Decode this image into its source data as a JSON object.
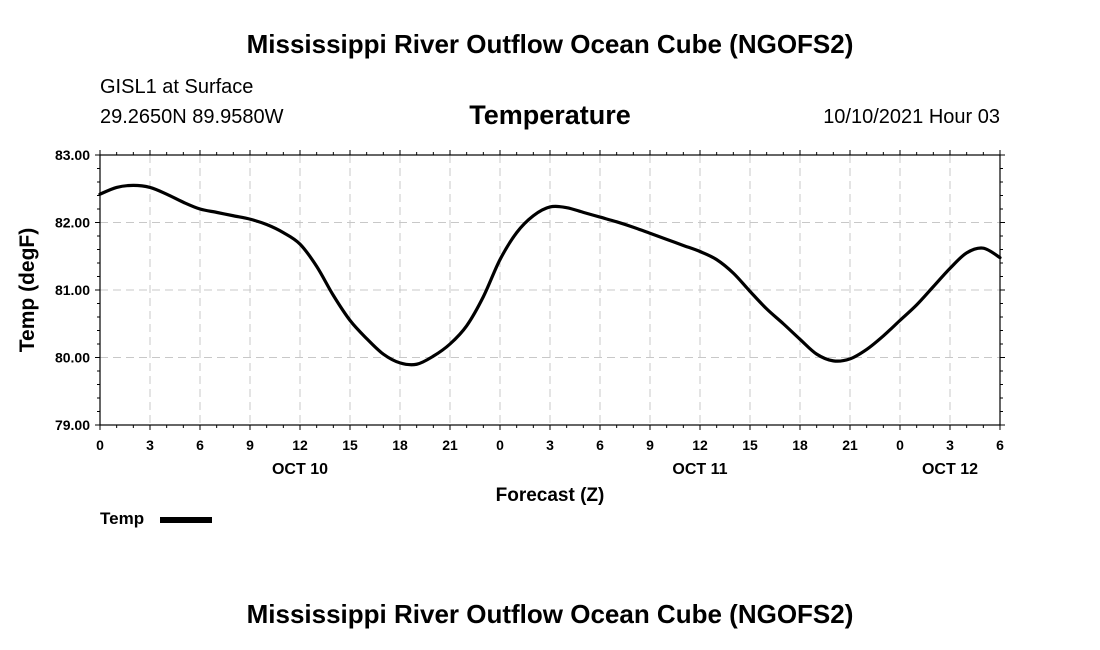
{
  "header": {
    "main_title": "Mississippi River Outflow Ocean Cube (NGOFS2)",
    "station": "GISL1 at Surface",
    "coords": "29.2650N  89.9580W",
    "variable": "Temperature",
    "datetime": "10/10/2021 Hour 03"
  },
  "footer": {
    "main_title": "Mississippi River Outflow Ocean Cube (NGOFS2)"
  },
  "legend": {
    "label": "Temp"
  },
  "chart_data": {
    "type": "line",
    "title": "Temperature",
    "xlabel": "Forecast (Z)",
    "ylabel": "Temp (degF)",
    "xlim": [
      0,
      54
    ],
    "ylim": [
      79,
      83
    ],
    "yticks": [
      "79.00",
      "80.00",
      "81.00",
      "82.00",
      "83.00"
    ],
    "xticks": [
      {
        "hours": 0,
        "label": "0"
      },
      {
        "hours": 3,
        "label": "3"
      },
      {
        "hours": 6,
        "label": "6"
      },
      {
        "hours": 9,
        "label": "9"
      },
      {
        "hours": 12,
        "label": "12"
      },
      {
        "hours": 15,
        "label": "15"
      },
      {
        "hours": 18,
        "label": "18"
      },
      {
        "hours": 21,
        "label": "21"
      },
      {
        "hours": 24,
        "label": "0"
      },
      {
        "hours": 27,
        "label": "3"
      },
      {
        "hours": 30,
        "label": "6"
      },
      {
        "hours": 33,
        "label": "9"
      },
      {
        "hours": 36,
        "label": "12"
      },
      {
        "hours": 39,
        "label": "15"
      },
      {
        "hours": 42,
        "label": "18"
      },
      {
        "hours": 45,
        "label": "21"
      },
      {
        "hours": 48,
        "label": "0"
      },
      {
        "hours": 51,
        "label": "3"
      },
      {
        "hours": 54,
        "label": "6"
      }
    ],
    "day_labels": [
      {
        "hours": 12,
        "label": "OCT 10"
      },
      {
        "hours": 36,
        "label": "OCT 11"
      },
      {
        "hours": 51,
        "label": "OCT 12"
      }
    ],
    "grid": true,
    "series": [
      {
        "name": "Temp",
        "color": "#000000",
        "x": [
          0,
          1,
          2,
          3,
          4,
          5,
          6,
          7,
          8,
          9,
          10,
          11,
          12,
          13,
          14,
          15,
          16,
          17,
          18,
          19,
          20,
          21,
          22,
          23,
          24,
          25,
          26,
          27,
          28,
          29,
          30,
          31,
          32,
          33,
          34,
          35,
          36,
          37,
          38,
          39,
          40,
          41,
          42,
          43,
          44,
          45,
          46,
          47,
          48,
          49,
          50,
          51,
          52,
          53,
          54
        ],
        "values": [
          82.42,
          82.52,
          82.55,
          82.52,
          82.42,
          82.3,
          82.2,
          82.15,
          82.1,
          82.05,
          81.97,
          81.85,
          81.68,
          81.35,
          80.92,
          80.55,
          80.28,
          80.05,
          79.92,
          79.9,
          80.02,
          80.2,
          80.47,
          80.9,
          81.45,
          81.85,
          82.1,
          82.23,
          82.22,
          82.15,
          82.08,
          82.01,
          81.93,
          81.84,
          81.75,
          81.66,
          81.57,
          81.45,
          81.25,
          80.98,
          80.72,
          80.5,
          80.27,
          80.05,
          79.95,
          79.98,
          80.12,
          80.32,
          80.55,
          80.78,
          81.05,
          81.32,
          81.55,
          81.62,
          81.48
        ]
      }
    ]
  }
}
